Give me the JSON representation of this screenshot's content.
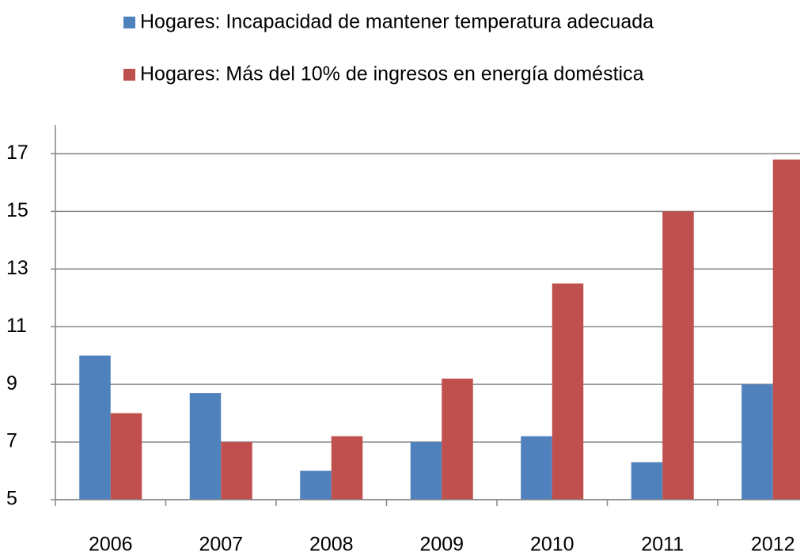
{
  "chart_data": {
    "type": "bar",
    "categories": [
      "2006",
      "2007",
      "2008",
      "2009",
      "2010",
      "2011",
      "2012"
    ],
    "series": [
      {
        "name": "Hogares: Incapacidad de mantener temperatura adecuada",
        "color": "#4f81bd",
        "values": [
          10,
          8.7,
          6,
          7,
          7.2,
          6.3,
          9
        ]
      },
      {
        "name": "Hogares: Más del 10% de ingresos en energía doméstica",
        "color": "#c0504d",
        "values": [
          8,
          7,
          7.2,
          9.2,
          12.5,
          15,
          16.8
        ]
      }
    ],
    "ylim": [
      5,
      18
    ],
    "yticks": [
      5,
      7,
      9,
      11,
      13,
      15,
      17
    ],
    "grid": true,
    "legend": "top"
  }
}
